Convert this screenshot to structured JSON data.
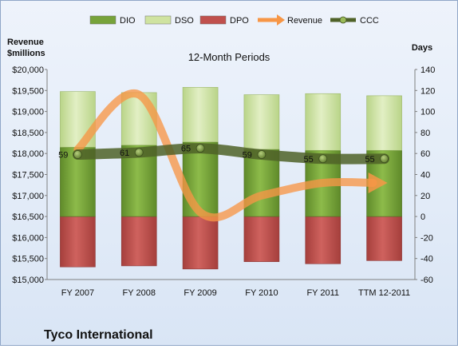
{
  "chart_data": {
    "type": "bar",
    "title": "12-Month Periods",
    "company": "Tyco International",
    "categories": [
      "FY 2007",
      "FY 2008",
      "FY 2009",
      "FY 2010",
      "FY 2011",
      "TTM 12-2011"
    ],
    "left_axis": {
      "label_line1": "Revenue",
      "label_line2": "$millions",
      "ylim": [
        15000,
        20000
      ],
      "ticks": [
        "$15,000",
        "$15,500",
        "$16,000",
        "$16,500",
        "$17,000",
        "$17,500",
        "$18,000",
        "$18,500",
        "$19,000",
        "$19,500",
        "$20,000"
      ]
    },
    "right_axis": {
      "label": "Days",
      "ylim": [
        -60,
        140
      ],
      "ticks": [
        "-60",
        "-40",
        "-20",
        "0",
        "20",
        "40",
        "60",
        "80",
        "100",
        "120",
        "140"
      ]
    },
    "legend": [
      {
        "name": "DIO",
        "color": "#77a33a",
        "kind": "bar"
      },
      {
        "name": "DSO",
        "color": "#cfe3a0",
        "kind": "bar"
      },
      {
        "name": "DPO",
        "color": "#c0504d",
        "kind": "bar"
      },
      {
        "name": "Revenue",
        "color": "#f79646",
        "kind": "arrow"
      },
      {
        "name": "CCC",
        "color": "#4f6228",
        "kind": "line-marker"
      }
    ],
    "series": [
      {
        "name": "DIO",
        "axis": "right",
        "values": [
          66,
          68,
          71,
          64,
          63,
          63
        ]
      },
      {
        "name": "DSO",
        "axis": "right",
        "values": [
          53,
          50,
          52,
          52,
          54,
          52
        ]
      },
      {
        "name": "DPO",
        "axis": "right",
        "values": [
          -48,
          -47,
          -50,
          -43,
          -45,
          -42
        ]
      },
      {
        "name": "Revenue",
        "axis": "left",
        "values": [
          18100,
          19400,
          16600,
          17000,
          17300,
          17300
        ]
      },
      {
        "name": "CCC",
        "axis": "right",
        "values": [
          59,
          61,
          65,
          59,
          55,
          55
        ],
        "data_labels": [
          "59",
          "61",
          "65",
          "59",
          "55",
          "55"
        ]
      }
    ],
    "legend_position": "top",
    "grid": false
  }
}
